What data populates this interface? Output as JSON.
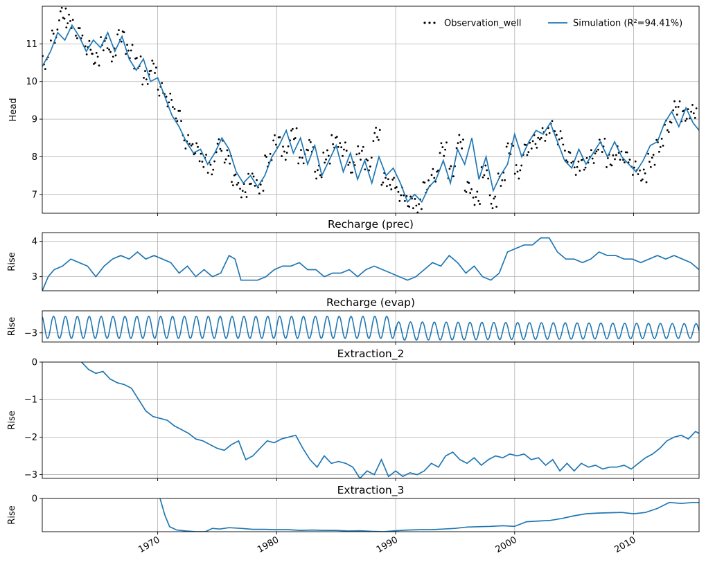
{
  "colors": {
    "simulation": "#1f77b4",
    "observation": "#000000",
    "grid": "#b0b0b0",
    "frame": "#000000"
  },
  "chart_data": [
    {
      "type": "scatter+line",
      "title": "",
      "xlabel": "",
      "ylabel": "Head",
      "xlim": [
        1960.3,
        2015.5
      ],
      "ylim": [
        6.5,
        12.0
      ],
      "yticks": [
        7,
        8,
        9,
        10,
        11
      ],
      "grid": true,
      "legend_position": "top-right",
      "legend": [
        {
          "label": "Observation_well",
          "style": "dots"
        },
        {
          "label": "Simulation (R²=94.41%)",
          "style": "line"
        }
      ],
      "series": [
        {
          "name": "Observation_well",
          "style": "dots",
          "x": [
            1960.5,
            1961.3,
            1962,
            1962.6,
            1963.4,
            1964.2,
            1964.8,
            1965.5,
            1966.2,
            1966.9,
            1967.6,
            1968.3,
            1969,
            1969.6,
            1970.3,
            1971,
            1971.7,
            1972.4,
            1973.1,
            1973.8,
            1974.5,
            1975.2,
            1975.9,
            1976.5,
            1977.2,
            1977.9,
            1978.6,
            1979.3,
            1980,
            1980.7,
            1981.4,
            1982.1,
            1982.8,
            1983.5,
            1984.2,
            1984.9,
            1985.6,
            1986.3,
            1987,
            1987.7,
            1988.4,
            1989.1,
            1989.8,
            1990.5,
            1991.2,
            1991.9,
            1992.6,
            1993.3,
            1994,
            1994.7,
            1995.4,
            1996.1,
            1996.8,
            1997.5,
            1998.2,
            1998.9,
            1999.6,
            2000.3,
            2001,
            2001.7,
            2002.4,
            2003.1,
            2003.8,
            2004.5,
            2005.2,
            2005.9,
            2006.6,
            2007.3,
            2008,
            2008.7,
            2009.4,
            2010.1,
            2010.8,
            2011.5,
            2012.2,
            2012.9,
            2013.6,
            2014.3,
            2015
          ],
          "y": [
            10.5,
            11.2,
            11.8,
            11.6,
            11.3,
            10.9,
            10.6,
            11.0,
            10.7,
            11.2,
            10.8,
            10.5,
            10.1,
            10.4,
            9.8,
            9.5,
            9.1,
            8.4,
            8.2,
            7.9,
            7.7,
            8.3,
            8.0,
            7.4,
            7.1,
            7.4,
            7.2,
            7.9,
            8.4,
            8.1,
            8.6,
            8.0,
            8.3,
            7.6,
            8.0,
            8.4,
            8.2,
            7.7,
            8.1,
            7.8,
            8.6,
            7.4,
            7.3,
            7.0,
            6.8,
            6.7,
            7.2,
            7.5,
            8.2,
            7.6,
            8.4,
            7.2,
            6.9,
            7.6,
            6.8,
            7.4,
            8.2,
            7.6,
            8.2,
            8.4,
            8.6,
            8.8,
            8.5,
            8.0,
            7.7,
            7.8,
            8.0,
            8.3,
            7.9,
            8.1,
            8.0,
            7.7,
            7.5,
            7.9,
            8.3,
            8.8,
            9.3,
            9.1,
            9.2
          ]
        },
        {
          "name": "Simulation (R²=94.41%)",
          "style": "line",
          "x": [
            1960.3,
            1961,
            1961.6,
            1962.2,
            1962.8,
            1963.4,
            1964,
            1964.6,
            1965.2,
            1965.8,
            1966.4,
            1967,
            1967.6,
            1968.2,
            1968.8,
            1969.4,
            1970,
            1970.6,
            1971.2,
            1971.8,
            1972.4,
            1973,
            1973.6,
            1974.2,
            1974.8,
            1975.4,
            1976,
            1976.6,
            1977.2,
            1977.8,
            1978.4,
            1979,
            1979.6,
            1980.2,
            1980.8,
            1981.4,
            1982,
            1982.6,
            1983.2,
            1983.8,
            1984.4,
            1985,
            1985.6,
            1986.2,
            1986.8,
            1987.4,
            1988,
            1988.6,
            1989.2,
            1989.8,
            1990.4,
            1991,
            1991.6,
            1992.2,
            1992.8,
            1993.4,
            1994,
            1994.6,
            1995.2,
            1995.8,
            1996.4,
            1997,
            1997.6,
            1998.2,
            1998.8,
            1999.4,
            2000,
            2000.6,
            2001.2,
            2001.8,
            2002.4,
            2003,
            2003.6,
            2004.2,
            2004.8,
            2005.4,
            2006,
            2006.6,
            2007.2,
            2007.8,
            2008.4,
            2009,
            2009.6,
            2010.2,
            2010.8,
            2011.4,
            2012,
            2012.6,
            2013.2,
            2013.8,
            2014.4,
            2015,
            2015.5
          ],
          "y": [
            10.4,
            10.8,
            11.3,
            11.1,
            11.5,
            11.2,
            10.8,
            11.1,
            10.9,
            11.3,
            10.8,
            11.2,
            10.6,
            10.3,
            10.6,
            10.0,
            10.1,
            9.6,
            9.1,
            8.8,
            8.4,
            8.1,
            8.2,
            7.8,
            8.1,
            8.5,
            8.2,
            7.6,
            7.3,
            7.5,
            7.2,
            7.5,
            8.0,
            8.3,
            8.7,
            8.1,
            8.5,
            7.8,
            8.3,
            7.5,
            7.9,
            8.3,
            7.6,
            8.1,
            7.4,
            7.9,
            7.3,
            8.0,
            7.5,
            7.7,
            7.3,
            6.8,
            7.0,
            6.8,
            7.2,
            7.4,
            7.9,
            7.3,
            8.2,
            7.8,
            8.5,
            7.4,
            8.0,
            7.1,
            7.5,
            7.8,
            8.6,
            8.0,
            8.4,
            8.7,
            8.6,
            8.9,
            8.4,
            7.9,
            7.7,
            8.2,
            7.8,
            8.1,
            8.4,
            8.0,
            8.4,
            8.0,
            7.8,
            7.6,
            7.9,
            8.3,
            8.4,
            8.9,
            9.2,
            8.8,
            9.3,
            8.9,
            8.7
          ]
        }
      ]
    },
    {
      "type": "line",
      "title": "Recharge (prec)",
      "ylabel": "Rise",
      "xlim": [
        1960.3,
        2015.5
      ],
      "ylim": [
        2.6,
        4.25
      ],
      "yticks": [
        3,
        4
      ],
      "grid": true,
      "series": [
        {
          "x": [
            1960.3,
            1960.8,
            1961.3,
            1962,
            1962.7,
            1963.4,
            1964.1,
            1964.8,
            1965.5,
            1966.2,
            1966.9,
            1967.6,
            1968.3,
            1969,
            1969.7,
            1970.4,
            1971.1,
            1971.8,
            1972.5,
            1973.2,
            1973.9,
            1974.6,
            1975.3,
            1976,
            1976.5,
            1977,
            1977.7,
            1978.4,
            1979.1,
            1979.8,
            1980.5,
            1981.2,
            1981.9,
            1982.6,
            1983.3,
            1984,
            1984.7,
            1985.4,
            1986.1,
            1986.8,
            1987.5,
            1988.2,
            1988.9,
            1989.6,
            1990.3,
            1991,
            1991.7,
            1992.4,
            1993.1,
            1993.8,
            1994.5,
            1995.2,
            1995.9,
            1996.6,
            1997.3,
            1998,
            1998.7,
            1999.4,
            2000.1,
            2000.8,
            2001.5,
            2002.2,
            2002.9,
            2003.6,
            2004.3,
            2005,
            2005.7,
            2006.4,
            2007.1,
            2007.8,
            2008.5,
            2009.2,
            2009.9,
            2010.6,
            2011.3,
            2012,
            2012.7,
            2013.4,
            2014.1,
            2014.8,
            2015.5
          ],
          "y": [
            2.6,
            3.0,
            3.2,
            3.3,
            3.5,
            3.4,
            3.3,
            3.0,
            3.3,
            3.5,
            3.6,
            3.5,
            3.7,
            3.5,
            3.6,
            3.5,
            3.4,
            3.1,
            3.3,
            3.0,
            3.2,
            3.0,
            3.1,
            3.6,
            3.5,
            2.9,
            2.9,
            2.9,
            3.0,
            3.2,
            3.3,
            3.3,
            3.4,
            3.2,
            3.2,
            3.0,
            3.1,
            3.1,
            3.2,
            3.0,
            3.2,
            3.3,
            3.2,
            3.1,
            3.0,
            2.9,
            3.0,
            3.2,
            3.4,
            3.3,
            3.6,
            3.4,
            3.1,
            3.3,
            3.0,
            2.9,
            3.1,
            3.7,
            3.8,
            3.9,
            3.9,
            4.1,
            4.1,
            3.7,
            3.5,
            3.5,
            3.4,
            3.5,
            3.7,
            3.6,
            3.6,
            3.5,
            3.5,
            3.4,
            3.5,
            3.6,
            3.5,
            3.6,
            3.5,
            3.4,
            3.2
          ]
        }
      ]
    },
    {
      "type": "line",
      "title": "Recharge (evap)",
      "ylabel": "Rise",
      "xlim": [
        1960.3,
        2015.5
      ],
      "ylim": [
        -3.25,
        -2.4
      ],
      "yticks": [
        -3
      ],
      "grid": true,
      "series": [
        {
          "period": 1.0,
          "phase": 0.0,
          "x": [
            1960.3,
            1990.0,
            1990.01,
            2015.5
          ],
          "center": [
            -2.85,
            -2.85,
            -2.95,
            -2.95
          ],
          "amplitude": [
            0.3,
            0.3,
            0.25,
            0.2
          ]
        }
      ]
    },
    {
      "type": "line",
      "title": "Extraction_2",
      "ylabel": "Rise",
      "xlim": [
        1960.3,
        2015.5
      ],
      "ylim": [
        -3.1,
        0
      ],
      "yticks": [
        0,
        -1,
        -2,
        -3
      ],
      "grid": true,
      "series": [
        {
          "x": [
            1963.6,
            1964.2,
            1964.8,
            1965.4,
            1966,
            1966.6,
            1967.2,
            1967.8,
            1968.4,
            1969,
            1969.6,
            1970.2,
            1970.8,
            1971.4,
            1972,
            1972.6,
            1973.2,
            1973.8,
            1974.4,
            1975,
            1975.6,
            1976.2,
            1976.8,
            1977.4,
            1978,
            1978.6,
            1979.2,
            1979.8,
            1980.4,
            1981,
            1981.6,
            1982.2,
            1982.8,
            1983.4,
            1984,
            1984.6,
            1985.2,
            1985.8,
            1986.4,
            1987,
            1987.6,
            1988.2,
            1988.8,
            1989.4,
            1990,
            1990.6,
            1991.2,
            1991.8,
            1992.4,
            1993,
            1993.6,
            1994.2,
            1994.8,
            1995.4,
            1996,
            1996.6,
            1997.2,
            1997.8,
            1998.4,
            1999,
            1999.6,
            2000.2,
            2000.8,
            2001.4,
            2002,
            2002.6,
            2003.2,
            2003.8,
            2004.4,
            2005,
            2005.6,
            2006.2,
            2006.8,
            2007.4,
            2008,
            2008.6,
            2009.2,
            2009.8,
            2010.4,
            2011,
            2011.6,
            2012.2,
            2012.8,
            2013.4,
            2014,
            2014.6,
            2015.2,
            2015.5
          ],
          "y": [
            0,
            -0.2,
            -0.3,
            -0.25,
            -0.45,
            -0.55,
            -0.6,
            -0.7,
            -1.0,
            -1.3,
            -1.45,
            -1.5,
            -1.55,
            -1.7,
            -1.8,
            -1.9,
            -2.05,
            -2.1,
            -2.2,
            -2.3,
            -2.35,
            -2.2,
            -2.1,
            -2.6,
            -2.5,
            -2.3,
            -2.1,
            -2.15,
            -2.05,
            -2.0,
            -1.95,
            -2.3,
            -2.6,
            -2.8,
            -2.5,
            -2.7,
            -2.65,
            -2.7,
            -2.8,
            -3.1,
            -2.9,
            -3.0,
            -2.6,
            -3.05,
            -2.9,
            -3.05,
            -2.95,
            -3.0,
            -2.9,
            -2.7,
            -2.8,
            -2.5,
            -2.4,
            -2.6,
            -2.7,
            -2.55,
            -2.75,
            -2.6,
            -2.5,
            -2.55,
            -2.45,
            -2.5,
            -2.45,
            -2.6,
            -2.55,
            -2.75,
            -2.6,
            -2.9,
            -2.7,
            -2.9,
            -2.7,
            -2.8,
            -2.75,
            -2.85,
            -2.8,
            -2.8,
            -2.75,
            -2.85,
            -2.7,
            -2.55,
            -2.45,
            -2.3,
            -2.1,
            -2.0,
            -1.95,
            -2.05,
            -1.85,
            -1.9
          ]
        }
      ]
    },
    {
      "type": "line",
      "title": "Extraction_3",
      "ylabel": "Rise",
      "xlim": [
        1960.3,
        2015.5
      ],
      "ylim": [
        -1.0,
        0
      ],
      "yticks": [
        0
      ],
      "grid": true,
      "xticks": [
        1970,
        1980,
        1990,
        2000,
        2010
      ],
      "xticklabels": [
        "1970",
        "1980",
        "1990",
        "2000",
        "2010"
      ],
      "series": [
        {
          "x": [
            1970.2,
            1970.6,
            1971,
            1971.6,
            1972.4,
            1973.2,
            1974,
            1974.6,
            1975.2,
            1976,
            1977,
            1978,
            1979,
            1980,
            1981,
            1982,
            1983,
            1984,
            1985,
            1986,
            1987,
            1988,
            1989,
            1990,
            1991,
            1992,
            1993,
            1994,
            1995,
            1996,
            1997,
            1998,
            1999,
            2000,
            2001,
            2002,
            2003,
            2004,
            2005,
            2006,
            2007,
            2008,
            2009,
            2010,
            2011,
            2012,
            2013,
            2014,
            2015,
            2015.5
          ],
          "y": [
            0,
            -0.5,
            -0.85,
            -0.95,
            -0.98,
            -1.0,
            -1.0,
            -0.9,
            -0.92,
            -0.88,
            -0.9,
            -0.93,
            -0.93,
            -0.94,
            -0.94,
            -0.96,
            -0.95,
            -0.96,
            -0.96,
            -0.98,
            -0.97,
            -0.99,
            -1.0,
            -0.97,
            -0.95,
            -0.94,
            -0.94,
            -0.92,
            -0.9,
            -0.86,
            -0.85,
            -0.84,
            -0.82,
            -0.84,
            -0.7,
            -0.68,
            -0.66,
            -0.6,
            -0.52,
            -0.46,
            -0.44,
            -0.43,
            -0.42,
            -0.46,
            -0.42,
            -0.3,
            -0.12,
            -0.15,
            -0.12,
            -0.12
          ]
        }
      ]
    }
  ]
}
